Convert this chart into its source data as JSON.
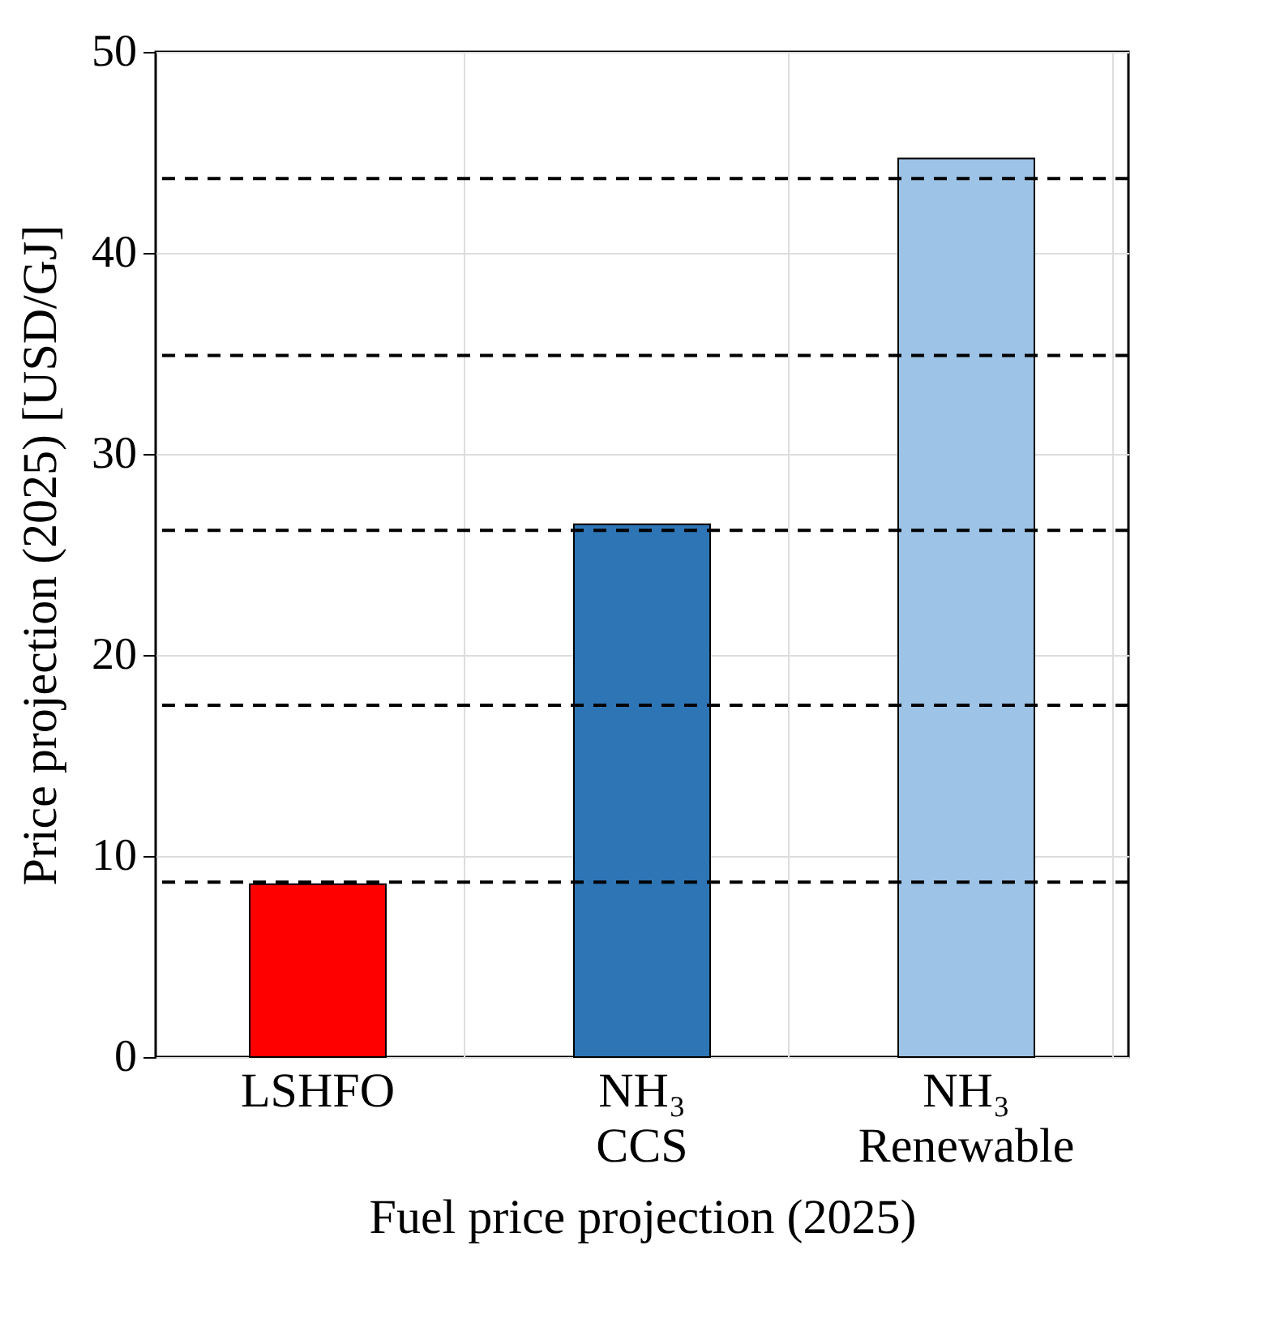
{
  "chart_data": {
    "type": "bar",
    "xlabel": "Fuel price projection (2025)",
    "ylabel": "Price projection  (2025) [USD/GJ]",
    "categories": [
      "LSHFO",
      "NH₃ CCS",
      "NH₃ Renewable"
    ],
    "values": [
      8.6,
      26.5,
      44.7
    ],
    "colors": [
      "#ff0000",
      "#2e75b6",
      "#9dc3e6"
    ],
    "ylim": [
      0,
      50
    ],
    "yticks": [
      0,
      10,
      20,
      30,
      40,
      50
    ],
    "grid": true,
    "ref_lines": [
      {
        "axis": "y",
        "value": 8.7,
        "line_style": "dashed",
        "color": "#000000"
      },
      {
        "axis": "y",
        "value": 17.5,
        "line_style": "dashed",
        "color": "#000000"
      },
      {
        "axis": "y",
        "value": 26.2,
        "line_style": "dashed",
        "color": "#000000"
      },
      {
        "axis": "y",
        "value": 34.9,
        "line_style": "dashed",
        "color": "#000000"
      },
      {
        "axis": "y",
        "value": 43.7,
        "line_style": "dashed",
        "color": "#000000"
      }
    ]
  }
}
